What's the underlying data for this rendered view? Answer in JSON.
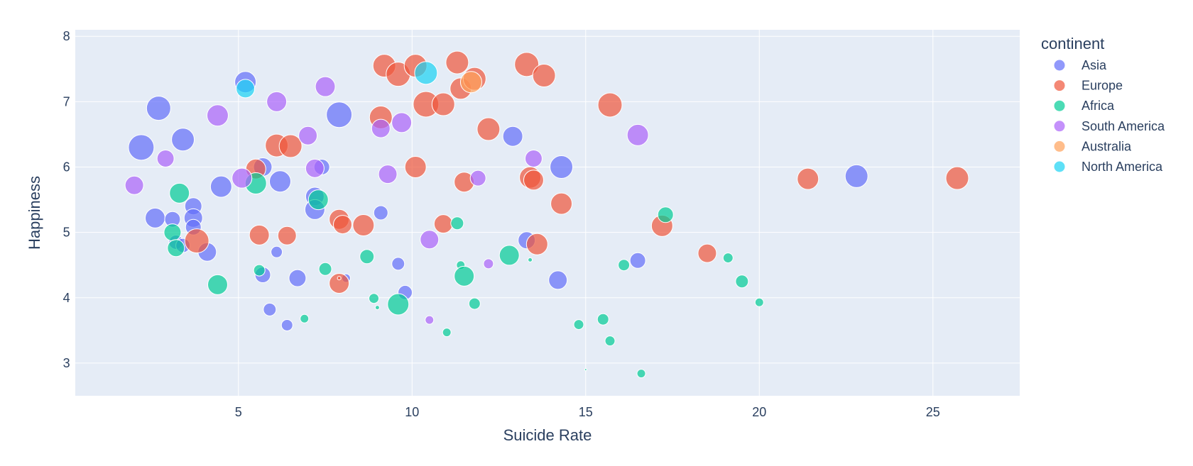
{
  "chart_data": {
    "type": "scatter",
    "xlabel": "Suicide Rate",
    "ylabel": "Happiness",
    "xlim": [
      0.3,
      27.5
    ],
    "ylim": [
      2.5,
      8.1
    ],
    "x_ticks": [
      5,
      10,
      15,
      20,
      25
    ],
    "y_ticks": [
      3,
      4,
      5,
      6,
      7,
      8
    ],
    "grid": true,
    "legend_title": "continent",
    "legend_position": "top-right",
    "marker_opacity": 0.7,
    "size_encoding": "bubble size",
    "series": [
      {
        "name": "Asia",
        "color": "#636efa",
        "points": [
          {
            "x": 2.2,
            "y": 6.3,
            "s": 36
          },
          {
            "x": 2.7,
            "y": 6.9,
            "s": 34
          },
          {
            "x": 3.4,
            "y": 6.42,
            "s": 32
          },
          {
            "x": 2.6,
            "y": 5.22,
            "s": 28
          },
          {
            "x": 3.1,
            "y": 5.2,
            "s": 22
          },
          {
            "x": 3.7,
            "y": 5.4,
            "s": 24
          },
          {
            "x": 3.7,
            "y": 5.22,
            "s": 26
          },
          {
            "x": 3.7,
            "y": 5.08,
            "s": 22
          },
          {
            "x": 3.2,
            "y": 4.85,
            "s": 20
          },
          {
            "x": 3.4,
            "y": 4.8,
            "s": 20
          },
          {
            "x": 4.1,
            "y": 4.7,
            "s": 26
          },
          {
            "x": 4.5,
            "y": 5.7,
            "s": 30
          },
          {
            "x": 5.2,
            "y": 7.3,
            "s": 30
          },
          {
            "x": 5.7,
            "y": 6.0,
            "s": 26
          },
          {
            "x": 6.2,
            "y": 5.78,
            "s": 30
          },
          {
            "x": 6.1,
            "y": 4.7,
            "s": 16
          },
          {
            "x": 5.7,
            "y": 4.35,
            "s": 22
          },
          {
            "x": 5.9,
            "y": 3.82,
            "s": 18
          },
          {
            "x": 6.4,
            "y": 3.58,
            "s": 16
          },
          {
            "x": 6.7,
            "y": 4.3,
            "s": 24
          },
          {
            "x": 7.2,
            "y": 5.55,
            "s": 26
          },
          {
            "x": 7.2,
            "y": 5.35,
            "s": 28
          },
          {
            "x": 7.4,
            "y": 6.0,
            "s": 22
          },
          {
            "x": 7.9,
            "y": 6.8,
            "s": 36
          },
          {
            "x": 8.1,
            "y": 4.3,
            "s": 12
          },
          {
            "x": 9.1,
            "y": 5.3,
            "s": 20
          },
          {
            "x": 9.6,
            "y": 4.52,
            "s": 18
          },
          {
            "x": 9.8,
            "y": 4.08,
            "s": 20
          },
          {
            "x": 12.9,
            "y": 6.47,
            "s": 28
          },
          {
            "x": 13.3,
            "y": 4.88,
            "s": 24
          },
          {
            "x": 14.2,
            "y": 4.27,
            "s": 26
          },
          {
            "x": 14.3,
            "y": 6.0,
            "s": 32
          },
          {
            "x": 16.5,
            "y": 4.57,
            "s": 22
          },
          {
            "x": 22.8,
            "y": 5.86,
            "s": 32
          }
        ]
      },
      {
        "name": "Europe",
        "color": "#ef553b",
        "points": [
          {
            "x": 3.8,
            "y": 4.87,
            "s": 34
          },
          {
            "x": 5.5,
            "y": 5.97,
            "s": 28
          },
          {
            "x": 5.6,
            "y": 4.96,
            "s": 28
          },
          {
            "x": 6.1,
            "y": 6.33,
            "s": 32
          },
          {
            "x": 6.5,
            "y": 6.32,
            "s": 32
          },
          {
            "x": 6.4,
            "y": 4.95,
            "s": 26
          },
          {
            "x": 7.9,
            "y": 4.22,
            "s": 28
          },
          {
            "x": 7.9,
            "y": 5.2,
            "s": 28
          },
          {
            "x": 8.0,
            "y": 5.12,
            "s": 26
          },
          {
            "x": 8.6,
            "y": 5.11,
            "s": 30
          },
          {
            "x": 9.1,
            "y": 6.76,
            "s": 32
          },
          {
            "x": 9.2,
            "y": 7.55,
            "s": 32
          },
          {
            "x": 9.6,
            "y": 7.42,
            "s": 34
          },
          {
            "x": 10.1,
            "y": 7.55,
            "s": 32
          },
          {
            "x": 10.1,
            "y": 6.0,
            "s": 30
          },
          {
            "x": 10.4,
            "y": 6.96,
            "s": 36
          },
          {
            "x": 10.9,
            "y": 6.96,
            "s": 32
          },
          {
            "x": 10.9,
            "y": 5.13,
            "s": 26
          },
          {
            "x": 11.3,
            "y": 7.6,
            "s": 32
          },
          {
            "x": 11.4,
            "y": 7.2,
            "s": 30
          },
          {
            "x": 11.5,
            "y": 5.77,
            "s": 28
          },
          {
            "x": 11.8,
            "y": 7.35,
            "s": 32
          },
          {
            "x": 12.2,
            "y": 6.58,
            "s": 32
          },
          {
            "x": 13.3,
            "y": 7.57,
            "s": 34
          },
          {
            "x": 13.4,
            "y": 5.84,
            "s": 30
          },
          {
            "x": 13.5,
            "y": 5.8,
            "s": 28
          },
          {
            "x": 13.6,
            "y": 4.82,
            "s": 30
          },
          {
            "x": 13.8,
            "y": 7.4,
            "s": 32
          },
          {
            "x": 14.3,
            "y": 5.44,
            "s": 30
          },
          {
            "x": 15.7,
            "y": 6.95,
            "s": 34
          },
          {
            "x": 17.2,
            "y": 5.1,
            "s": 30
          },
          {
            "x": 18.5,
            "y": 4.68,
            "s": 26
          },
          {
            "x": 21.4,
            "y": 5.82,
            "s": 30
          },
          {
            "x": 25.7,
            "y": 5.83,
            "s": 32
          },
          {
            "x": 7.9,
            "y": 4.3,
            "s": 5
          }
        ]
      },
      {
        "name": "Africa",
        "color": "#00cc96",
        "points": [
          {
            "x": 3.1,
            "y": 5.0,
            "s": 24
          },
          {
            "x": 3.2,
            "y": 4.76,
            "s": 24
          },
          {
            "x": 3.3,
            "y": 5.6,
            "s": 28
          },
          {
            "x": 4.4,
            "y": 4.2,
            "s": 28
          },
          {
            "x": 5.5,
            "y": 5.75,
            "s": 30
          },
          {
            "x": 5.6,
            "y": 4.42,
            "s": 16
          },
          {
            "x": 6.9,
            "y": 3.68,
            "s": 12
          },
          {
            "x": 7.3,
            "y": 5.5,
            "s": 28
          },
          {
            "x": 7.5,
            "y": 4.44,
            "s": 18
          },
          {
            "x": 8.7,
            "y": 4.63,
            "s": 20
          },
          {
            "x": 8.9,
            "y": 3.99,
            "s": 14
          },
          {
            "x": 9.0,
            "y": 3.85,
            "s": 6
          },
          {
            "x": 9.6,
            "y": 3.9,
            "s": 30
          },
          {
            "x": 11.0,
            "y": 3.47,
            "s": 12
          },
          {
            "x": 11.3,
            "y": 5.14,
            "s": 18
          },
          {
            "x": 11.4,
            "y": 4.5,
            "s": 12
          },
          {
            "x": 11.5,
            "y": 4.33,
            "s": 28
          },
          {
            "x": 11.8,
            "y": 3.91,
            "s": 16
          },
          {
            "x": 12.8,
            "y": 4.65,
            "s": 28
          },
          {
            "x": 13.4,
            "y": 4.58,
            "s": 6
          },
          {
            "x": 14.8,
            "y": 3.59,
            "s": 14
          },
          {
            "x": 15.0,
            "y": 2.9,
            "s": 3
          },
          {
            "x": 15.5,
            "y": 3.67,
            "s": 16
          },
          {
            "x": 15.7,
            "y": 3.34,
            "s": 14
          },
          {
            "x": 16.1,
            "y": 4.5,
            "s": 16
          },
          {
            "x": 16.6,
            "y": 2.84,
            "s": 12
          },
          {
            "x": 17.3,
            "y": 5.27,
            "s": 22
          },
          {
            "x": 19.1,
            "y": 4.61,
            "s": 14
          },
          {
            "x": 19.5,
            "y": 4.25,
            "s": 18
          },
          {
            "x": 20.0,
            "y": 3.93,
            "s": 12
          }
        ]
      },
      {
        "name": "South America",
        "color": "#ab63fa",
        "points": [
          {
            "x": 2.0,
            "y": 5.72,
            "s": 26
          },
          {
            "x": 2.9,
            "y": 6.13,
            "s": 24
          },
          {
            "x": 4.4,
            "y": 6.79,
            "s": 30
          },
          {
            "x": 5.1,
            "y": 5.83,
            "s": 28
          },
          {
            "x": 6.1,
            "y": 7.0,
            "s": 28
          },
          {
            "x": 7.0,
            "y": 6.48,
            "s": 26
          },
          {
            "x": 7.2,
            "y": 5.98,
            "s": 26
          },
          {
            "x": 7.5,
            "y": 7.23,
            "s": 28
          },
          {
            "x": 9.1,
            "y": 6.59,
            "s": 26
          },
          {
            "x": 9.3,
            "y": 5.89,
            "s": 26
          },
          {
            "x": 9.7,
            "y": 6.68,
            "s": 28
          },
          {
            "x": 10.5,
            "y": 4.89,
            "s": 26
          },
          {
            "x": 10.5,
            "y": 3.66,
            "s": 12
          },
          {
            "x": 11.9,
            "y": 5.83,
            "s": 22
          },
          {
            "x": 12.2,
            "y": 4.52,
            "s": 14
          },
          {
            "x": 13.5,
            "y": 6.13,
            "s": 24
          },
          {
            "x": 16.5,
            "y": 6.49,
            "s": 30
          }
        ]
      },
      {
        "name": "Australia",
        "color": "#ffa15a",
        "points": [
          {
            "x": 11.7,
            "y": 7.3,
            "s": 30
          }
        ]
      },
      {
        "name": "North America",
        "color": "#19d3f3",
        "points": [
          {
            "x": 5.2,
            "y": 7.2,
            "s": 26
          },
          {
            "x": 10.4,
            "y": 7.44,
            "s": 32
          }
        ]
      }
    ]
  }
}
